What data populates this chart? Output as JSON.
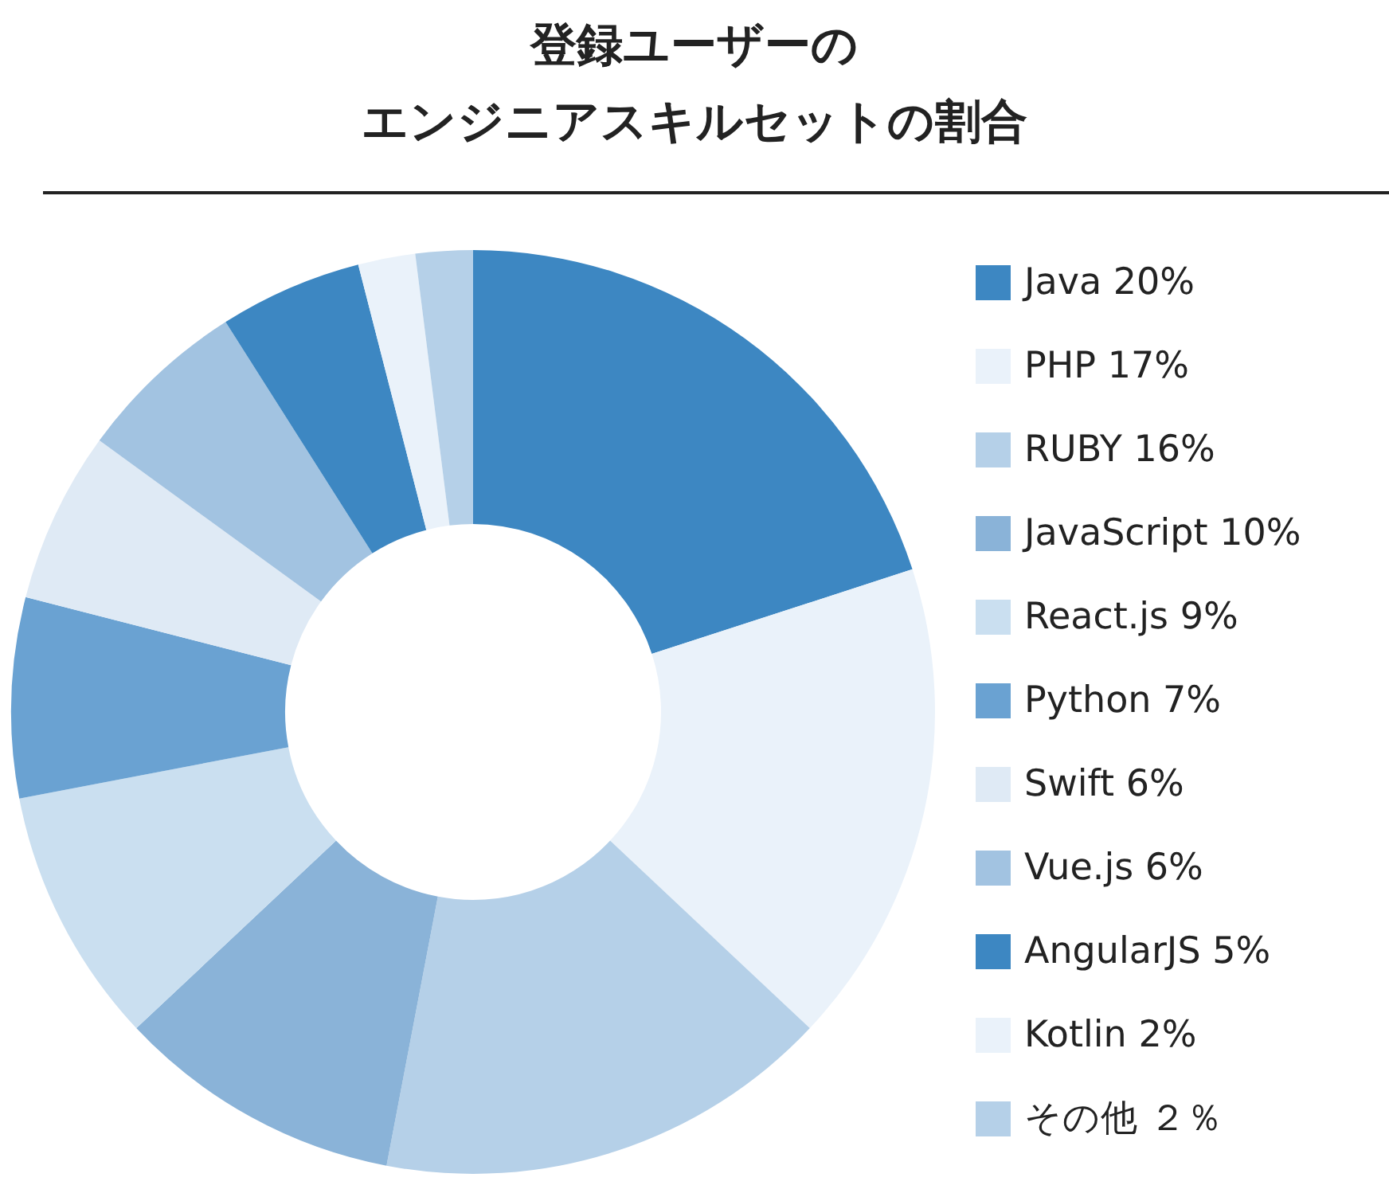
{
  "chart_data": {
    "type": "donut",
    "title": "登録ユーザーのエンジニアスキルセットの割合",
    "categories": [
      "Java",
      "PHP",
      "RUBY",
      "JavaScript",
      "React.js",
      "Python",
      "Swift",
      "Vue.js",
      "AngularJS",
      "Kotlin",
      "その他"
    ],
    "values": [
      20,
      17,
      16,
      10,
      9,
      7,
      6,
      6,
      5,
      2,
      2
    ],
    "value_labels": [
      "20%",
      "17%",
      "16%",
      "10%",
      "9%",
      "7%",
      "6%",
      "6%",
      "5%",
      "2%",
      "２％"
    ],
    "colors": [
      "#3d87c2",
      "#eaf2fa",
      "#b5d0e8",
      "#8ab3d8",
      "#cadff0",
      "#6aa2d2",
      "#dfeaf5",
      "#a2c3e1",
      "#3d87c2",
      "#eaf2fa",
      "#b5d0e8"
    ],
    "legend": "right"
  }
}
